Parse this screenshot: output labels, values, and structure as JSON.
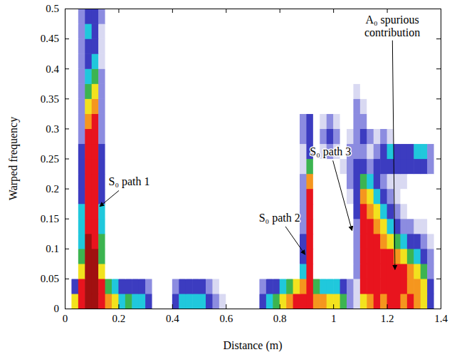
{
  "chart_data": {
    "type": "heatmap",
    "x_label": "Distance (m)",
    "y_label": "Warped frequency",
    "xlim": [
      0,
      1.4
    ],
    "ylim": [
      0,
      0.5
    ],
    "xticks": [
      0,
      0.2,
      0.4,
      0.6,
      0.8,
      1,
      1.2,
      1.4
    ],
    "yticks": [
      0,
      0.05,
      0.1,
      0.15,
      0.2,
      0.25,
      0.3,
      0.35,
      0.4,
      0.45,
      0.5
    ],
    "grid": false,
    "zlim": [
      0,
      9
    ],
    "x_bins": [
      0,
      0.025,
      0.05,
      0.075,
      0.1,
      0.125,
      0.15,
      0.175,
      0.2,
      0.225,
      0.25,
      0.275,
      0.3,
      0.325,
      0.35,
      0.375,
      0.4,
      0.425,
      0.45,
      0.475,
      0.5,
      0.525,
      0.55,
      0.575,
      0.6,
      0.625,
      0.65,
      0.675,
      0.7,
      0.725,
      0.75,
      0.775,
      0.8,
      0.825,
      0.85,
      0.875,
      0.9,
      0.925,
      0.95,
      0.975,
      1.0,
      1.025,
      1.05,
      1.075,
      1.1,
      1.125,
      1.15,
      1.175,
      1.2,
      1.225,
      1.25,
      1.275,
      1.3,
      1.325,
      1.35,
      1.375,
      1.4
    ],
    "y_bins": [
      0,
      0.025,
      0.05,
      0.075,
      0.1,
      0.125,
      0.15,
      0.175,
      0.2,
      0.225,
      0.25,
      0.275,
      0.3,
      0.325,
      0.35,
      0.375,
      0.4,
      0.425,
      0.45,
      0.475,
      0.5
    ],
    "z": [
      [
        0,
        6,
        8,
        9,
        9,
        8,
        7,
        6,
        4,
        5,
        4,
        4,
        3,
        0,
        0,
        0,
        3,
        4,
        4,
        4,
        4,
        3,
        2,
        1,
        0,
        0,
        0,
        0,
        0,
        3,
        4,
        5,
        6,
        7,
        8,
        8,
        8,
        7,
        7,
        6,
        6,
        5,
        2,
        1,
        6,
        7,
        8,
        7,
        8,
        8,
        7,
        8,
        7,
        6,
        3,
        0
      ],
      [
        0,
        3,
        8,
        9,
        9,
        8,
        5,
        4,
        3,
        3,
        3,
        3,
        2,
        0,
        0,
        0,
        2,
        3,
        3,
        3,
        3,
        2,
        1,
        0,
        0,
        0,
        0,
        0,
        0,
        2,
        3,
        3,
        4,
        5,
        6,
        7,
        8,
        5,
        4,
        4,
        4,
        3,
        2,
        1,
        8,
        8,
        8,
        8,
        8,
        8,
        8,
        7,
        7,
        6,
        3,
        0
      ],
      [
        0,
        0,
        6,
        9,
        9,
        6,
        0,
        0,
        0,
        0,
        0,
        0,
        0,
        0,
        0,
        0,
        0,
        0,
        0,
        0,
        0,
        0,
        0,
        0,
        0,
        0,
        0,
        0,
        0,
        0,
        0,
        0,
        0,
        0,
        0,
        4,
        8,
        0,
        0,
        0,
        0,
        0,
        0,
        2,
        8,
        8,
        8,
        8,
        8,
        8,
        8,
        7,
        6,
        5,
        2,
        0
      ],
      [
        0,
        0,
        5,
        9,
        9,
        5,
        0,
        0,
        0,
        0,
        0,
        0,
        0,
        0,
        0,
        0,
        0,
        0,
        0,
        0,
        0,
        0,
        0,
        0,
        0,
        0,
        0,
        0,
        0,
        0,
        0,
        0,
        0,
        0,
        0,
        3,
        8,
        0,
        0,
        0,
        0,
        0,
        0,
        2,
        8,
        8,
        8,
        8,
        8,
        7,
        6,
        5,
        4,
        3,
        2,
        0
      ],
      [
        0,
        0,
        4,
        9,
        8,
        5,
        0,
        0,
        0,
        0,
        0,
        0,
        0,
        0,
        0,
        0,
        0,
        0,
        0,
        0,
        0,
        0,
        0,
        0,
        0,
        0,
        0,
        0,
        0,
        0,
        0,
        0,
        0,
        0,
        0,
        3,
        8,
        0,
        0,
        0,
        0,
        0,
        0,
        2,
        8,
        8,
        8,
        7,
        6,
        5,
        4,
        3,
        3,
        2,
        1,
        0
      ],
      [
        0,
        0,
        4,
        8,
        8,
        4,
        0,
        0,
        0,
        0,
        0,
        0,
        0,
        0,
        0,
        0,
        0,
        0,
        0,
        0,
        0,
        0,
        0,
        0,
        0,
        0,
        0,
        0,
        0,
        0,
        0,
        0,
        0,
        0,
        0,
        2,
        8,
        0,
        0,
        0,
        0,
        0,
        0,
        2,
        8,
        8,
        7,
        6,
        4,
        3,
        2,
        2,
        1,
        1,
        0,
        0
      ],
      [
        0,
        0,
        4,
        8,
        8,
        4,
        0,
        0,
        0,
        0,
        0,
        0,
        0,
        0,
        0,
        0,
        0,
        0,
        0,
        0,
        0,
        0,
        0,
        0,
        0,
        0,
        0,
        0,
        0,
        0,
        0,
        0,
        0,
        0,
        0,
        2,
        8,
        0,
        0,
        0,
        0,
        0,
        0,
        3,
        8,
        7,
        6,
        4,
        3,
        2,
        1,
        0,
        0,
        0,
        0,
        0
      ],
      [
        0,
        0,
        3,
        8,
        8,
        3,
        0,
        0,
        0,
        0,
        0,
        0,
        0,
        0,
        0,
        0,
        0,
        0,
        0,
        0,
        0,
        0,
        0,
        0,
        0,
        0,
        0,
        0,
        0,
        0,
        0,
        0,
        0,
        0,
        0,
        2,
        8,
        0,
        0,
        0,
        0,
        0,
        1,
        3,
        7,
        6,
        4,
        3,
        2,
        1,
        0,
        0,
        0,
        0,
        0,
        0
      ],
      [
        0,
        0,
        3,
        8,
        8,
        3,
        0,
        0,
        0,
        0,
        0,
        0,
        0,
        0,
        0,
        0,
        0,
        0,
        0,
        0,
        0,
        0,
        0,
        0,
        0,
        0,
        0,
        0,
        0,
        0,
        0,
        0,
        0,
        0,
        0,
        2,
        7,
        0,
        0,
        0,
        0,
        0,
        2,
        3,
        5,
        4,
        3,
        2,
        1,
        1,
        1,
        0,
        0,
        0,
        0,
        0
      ],
      [
        0,
        0,
        3,
        8,
        8,
        3,
        0,
        0,
        0,
        0,
        0,
        0,
        0,
        0,
        0,
        0,
        0,
        0,
        0,
        0,
        0,
        0,
        0,
        0,
        0,
        0,
        0,
        0,
        0,
        0,
        0,
        0,
        0,
        0,
        0,
        1,
        5,
        0,
        0,
        0,
        0,
        1,
        2,
        3,
        3,
        2,
        3,
        3,
        3,
        3,
        3,
        3,
        3,
        3,
        2,
        0
      ],
      [
        0,
        0,
        3,
        8,
        8,
        3,
        0,
        0,
        0,
        0,
        0,
        0,
        0,
        0,
        0,
        0,
        0,
        0,
        0,
        0,
        0,
        0,
        0,
        0,
        0,
        0,
        0,
        0,
        0,
        0,
        0,
        0,
        0,
        0,
        0,
        1,
        3,
        0,
        1,
        2,
        1,
        0,
        2,
        2,
        2,
        1,
        2,
        3,
        4,
        3,
        3,
        3,
        4,
        4,
        2,
        0
      ],
      [
        0,
        0,
        2,
        8,
        8,
        2,
        0,
        0,
        0,
        0,
        0,
        0,
        0,
        0,
        0,
        0,
        0,
        0,
        0,
        0,
        0,
        0,
        0,
        0,
        0,
        0,
        0,
        0,
        0,
        0,
        0,
        0,
        0,
        0,
        0,
        2,
        3,
        0,
        2,
        3,
        2,
        0,
        1,
        2,
        3,
        2,
        1,
        2,
        1,
        0,
        0,
        0,
        0,
        0,
        0,
        0
      ],
      [
        0,
        0,
        2,
        7,
        8,
        2,
        0,
        0,
        0,
        0,
        0,
        0,
        0,
        0,
        0,
        0,
        0,
        0,
        0,
        0,
        0,
        0,
        0,
        0,
        0,
        0,
        0,
        0,
        0,
        0,
        0,
        0,
        0,
        0,
        0,
        2,
        3,
        0,
        1,
        2,
        1,
        0,
        0,
        2,
        2,
        0,
        0,
        0,
        0,
        0,
        0,
        0,
        0,
        0,
        0,
        0
      ],
      [
        0,
        0,
        2,
        6,
        7,
        2,
        0,
        0,
        0,
        0,
        0,
        0,
        0,
        0,
        0,
        0,
        0,
        0,
        0,
        0,
        0,
        0,
        0,
        0,
        0,
        0,
        0,
        0,
        0,
        0,
        0,
        0,
        0,
        0,
        0,
        0,
        0,
        0,
        0,
        0,
        0,
        0,
        0,
        2,
        1,
        0,
        0,
        0,
        0,
        0,
        0,
        0,
        0,
        0,
        0,
        0
      ],
      [
        0,
        0,
        2,
        5,
        6,
        2,
        0,
        0,
        0,
        0,
        0,
        0,
        0,
        0,
        0,
        0,
        0,
        0,
        0,
        0,
        0,
        0,
        0,
        0,
        0,
        0,
        0,
        0,
        0,
        0,
        0,
        0,
        0,
        0,
        0,
        0,
        0,
        0,
        0,
        0,
        0,
        0,
        0,
        1,
        0,
        0,
        0,
        0,
        0,
        0,
        0,
        0,
        0,
        0,
        0,
        0
      ],
      [
        0,
        0,
        2,
        4,
        5,
        2,
        0,
        0,
        0,
        0,
        0,
        0,
        0,
        0,
        0,
        0,
        0,
        0,
        0,
        0,
        0,
        0,
        0,
        0,
        0,
        0,
        0,
        0,
        0,
        0,
        0,
        0,
        0,
        0,
        0,
        0,
        0,
        0,
        0,
        0,
        0,
        0,
        0,
        0,
        0,
        0,
        0,
        0,
        0,
        0,
        0,
        0,
        0,
        0,
        0,
        0
      ],
      [
        0,
        0,
        2,
        3,
        4,
        1,
        0,
        0,
        0,
        0,
        0,
        0,
        0,
        0,
        0,
        0,
        0,
        0,
        0,
        0,
        0,
        0,
        0,
        0,
        0,
        0,
        0,
        0,
        0,
        0,
        0,
        0,
        0,
        0,
        0,
        0,
        0,
        0,
        0,
        0,
        0,
        0,
        0,
        0,
        0,
        0,
        0,
        0,
        0,
        0,
        0,
        0,
        0,
        0,
        0,
        0
      ],
      [
        0,
        0,
        2,
        3,
        3,
        1,
        0,
        0,
        0,
        0,
        0,
        0,
        0,
        0,
        0,
        0,
        0,
        0,
        0,
        0,
        0,
        0,
        0,
        0,
        0,
        0,
        0,
        0,
        0,
        0,
        0,
        0,
        0,
        0,
        0,
        0,
        0,
        0,
        0,
        0,
        0,
        0,
        0,
        0,
        0,
        0,
        0,
        0,
        0,
        0,
        0,
        0,
        0,
        0,
        0,
        0
      ],
      [
        0,
        0,
        2,
        4,
        3,
        1,
        0,
        0,
        0,
        0,
        0,
        0,
        0,
        0,
        0,
        0,
        0,
        0,
        0,
        0,
        0,
        0,
        0,
        0,
        0,
        0,
        0,
        0,
        0,
        0,
        0,
        0,
        0,
        0,
        0,
        0,
        0,
        0,
        0,
        0,
        0,
        0,
        0,
        0,
        0,
        0,
        0,
        0,
        0,
        0,
        0,
        0,
        0,
        0,
        0,
        0
      ],
      [
        0,
        0,
        2,
        3,
        3,
        2,
        0,
        0,
        0,
        0,
        0,
        0,
        0,
        0,
        0,
        0,
        0,
        0,
        0,
        0,
        0,
        0,
        0,
        0,
        0,
        0,
        0,
        0,
        0,
        0,
        0,
        0,
        0,
        0,
        0,
        0,
        0,
        0,
        0,
        0,
        0,
        0,
        0,
        0,
        0,
        0,
        0,
        0,
        0,
        0,
        0,
        0,
        0,
        0,
        0,
        0
      ]
    ],
    "annotations": [
      {
        "text": "S₀ path 1",
        "xy": [
          0.13,
          0.17
        ],
        "xytext": [
          0.24,
          0.205
        ]
      },
      {
        "text": "S₀ path 2",
        "xy": [
          0.895,
          0.09
        ],
        "xytext": [
          0.8,
          0.145
        ]
      },
      {
        "text": "S₀ path 3",
        "xy": [
          1.07,
          0.13
        ],
        "xytext": [
          0.99,
          0.255
        ]
      },
      {
        "text": "A₀ spurious contribution",
        "xy": [
          1.23,
          0.065
        ],
        "xytext": [
          1.22,
          0.475
        ]
      }
    ]
  }
}
